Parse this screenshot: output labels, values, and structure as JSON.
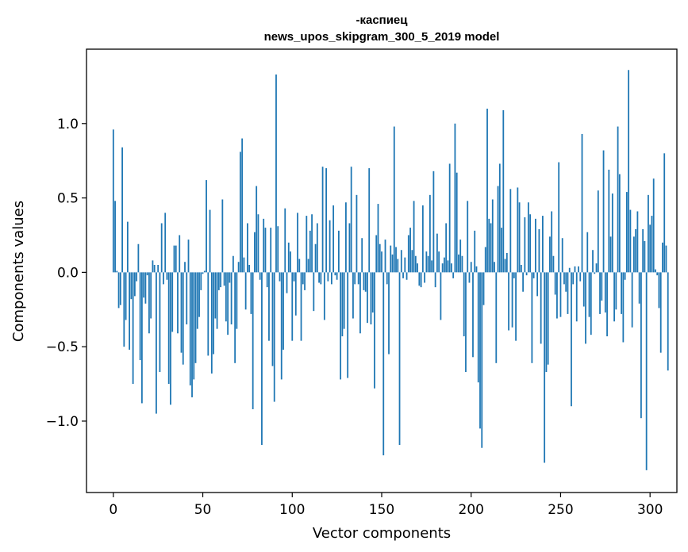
{
  "chart_data": {
    "type": "bar",
    "title_line1": "-каспиец",
    "title_line2": "news_upos_skipgram_300_5_2019 model",
    "xlabel": "Vector components",
    "ylabel": "Components values",
    "xlim": [
      -15,
      315
    ],
    "ylim": [
      -1.48,
      1.5
    ],
    "xticks": [
      0,
      50,
      100,
      150,
      200,
      250,
      300
    ],
    "xtick_labels": [
      "0",
      "50",
      "100",
      "150",
      "200",
      "250",
      "300"
    ],
    "yticks": [
      -1.0,
      -0.5,
      0.0,
      0.5,
      1.0
    ],
    "ytick_labels": [
      "−1.0",
      "−0.5",
      "0.0",
      "0.5",
      "1.0"
    ],
    "bar_color": "#1f77b4",
    "values": [
      0.96,
      0.48,
      0.01,
      -0.24,
      -0.22,
      0.84,
      -0.5,
      -0.32,
      0.34,
      -0.52,
      -0.18,
      -0.75,
      -0.16,
      -0.06,
      0.19,
      -0.59,
      -0.88,
      -0.17,
      -0.21,
      -0.02,
      -0.41,
      -0.31,
      0.08,
      0.05,
      -0.95,
      0.05,
      -0.67,
      0.33,
      -0.08,
      0.4,
      -0.05,
      -0.75,
      -0.89,
      -0.4,
      0.18,
      0.18,
      -0.41,
      0.25,
      -0.54,
      -0.62,
      0.07,
      -0.35,
      0.22,
      -0.76,
      -0.84,
      -0.72,
      -0.61,
      -0.38,
      -0.3,
      -0.12,
      -0.01,
      0.01,
      0.62,
      -0.56,
      0.42,
      -0.68,
      -0.55,
      -0.31,
      -0.38,
      -0.12,
      -0.1,
      0.49,
      -0.09,
      -0.33,
      -0.42,
      -0.07,
      -0.35,
      0.11,
      -0.61,
      -0.38,
      0.07,
      0.81,
      0.9,
      0.1,
      -0.25,
      0.33,
      0.05,
      -0.28,
      -0.92,
      0.27,
      0.58,
      0.39,
      -0.05,
      -1.16,
      0.36,
      0.3,
      -0.1,
      -0.46,
      0.3,
      -0.63,
      -0.87,
      1.33,
      0.31,
      -0.06,
      -0.72,
      -0.52,
      0.43,
      -0.14,
      0.2,
      0.14,
      -0.46,
      -0.06,
      -0.29,
      0.4,
      0.09,
      -0.46,
      -0.08,
      -0.12,
      0.38,
      0.09,
      0.28,
      0.39,
      -0.26,
      0.19,
      0.33,
      -0.07,
      -0.08,
      0.71,
      -0.32,
      0.7,
      -0.06,
      0.35,
      -0.08,
      0.45,
      -0.02,
      -0.05,
      0.28,
      -0.72,
      -0.43,
      -0.38,
      0.47,
      -0.71,
      0.33,
      0.71,
      -0.31,
      -0.08,
      0.52,
      -0.08,
      -0.41,
      0.23,
      -0.12,
      -0.13,
      -0.34,
      0.7,
      -0.35,
      -0.27,
      -0.78,
      0.25,
      0.46,
      0.19,
      0.14,
      -1.23,
      0.22,
      -0.08,
      -0.55,
      0.18,
      0.12,
      0.98,
      0.17,
      0.09,
      -1.16,
      0.15,
      -0.04,
      0.1,
      -0.05,
      0.25,
      0.3,
      0.15,
      0.48,
      0.11,
      0.06,
      -0.09,
      -0.1,
      0.45,
      -0.07,
      0.14,
      0.11,
      0.52,
      0.08,
      0.68,
      -0.1,
      0.26,
      0.14,
      -0.32,
      0.06,
      0.1,
      0.33,
      0.08,
      0.73,
      0.06,
      -0.04,
      1.0,
      0.67,
      0.12,
      0.22,
      0.11,
      -0.43,
      -0.67,
      0.48,
      -0.07,
      0.07,
      -0.57,
      0.28,
      0.04,
      -0.74,
      -1.05,
      -1.18,
      -0.22,
      0.17,
      1.1,
      0.36,
      0.33,
      0.49,
      0.07,
      -0.61,
      0.58,
      0.73,
      0.3,
      1.09,
      0.09,
      0.13,
      -0.39,
      0.56,
      -0.37,
      -0.04,
      -0.46,
      0.57,
      0.47,
      0.05,
      -0.13,
      0.37,
      -0.02,
      0.47,
      0.39,
      -0.61,
      -0.04,
      0.36,
      -0.16,
      0.29,
      -0.48,
      0.38,
      -1.28,
      -0.67,
      -0.62,
      0.24,
      0.41,
      0.11,
      -0.15,
      -0.31,
      0.74,
      -0.3,
      0.23,
      -0.08,
      -0.13,
      -0.28,
      0.03,
      -0.9,
      -0.08,
      0.04,
      -0.33,
      0.04,
      -0.06,
      0.93,
      -0.23,
      -0.48,
      0.27,
      -0.3,
      -0.42,
      0.15,
      -0.01,
      0.06,
      0.55,
      -0.28,
      -0.19,
      0.82,
      -0.27,
      -0.43,
      0.69,
      0.24,
      0.53,
      -0.33,
      -0.25,
      0.98,
      0.66,
      -0.28,
      -0.47,
      -0.05,
      0.54,
      1.36,
      0.42,
      -0.37,
      0.24,
      0.29,
      0.41,
      -0.21,
      -0.98,
      0.29,
      0.21,
      -1.33,
      0.52,
      0.32,
      0.38,
      0.63,
      0.02,
      -0.02,
      -0.24,
      -0.54,
      0.2,
      0.8,
      0.18,
      -0.66
    ]
  }
}
